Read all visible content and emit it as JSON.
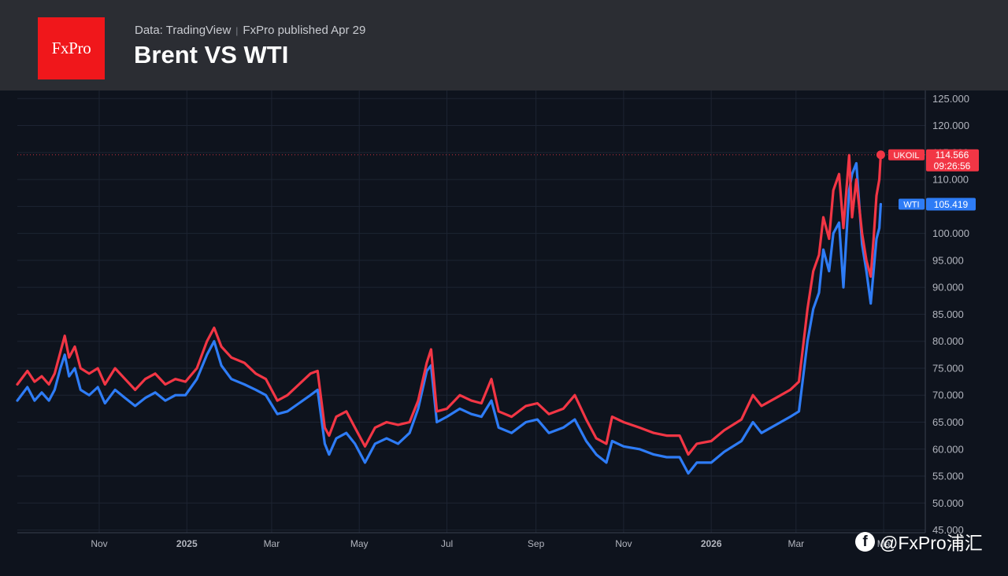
{
  "header": {
    "logo_text": "FxPro",
    "source": "Data: TradingView",
    "published": "FxPro published Apr 29",
    "title": "Brent VS WTI"
  },
  "watermark": {
    "icon": "facebook-icon",
    "text": "@FxPro浦汇"
  },
  "colors": {
    "brent": "#f23645",
    "wti": "#2e7cf6",
    "background": "#0e131d",
    "grid": "#1d2432",
    "axis_text": "#b2b5be"
  },
  "chart_data": {
    "type": "line",
    "title": "Brent VS WTI",
    "x_ticks": [
      {
        "label": "Nov",
        "date": "2024-11-01",
        "bold": false
      },
      {
        "label": "2025",
        "date": "2025-01-01",
        "bold": true
      },
      {
        "label": "Mar",
        "date": "2025-03-01",
        "bold": false
      },
      {
        "label": "May",
        "date": "2025-05-01",
        "bold": false
      },
      {
        "label": "Jul",
        "date": "2025-07-01",
        "bold": false
      },
      {
        "label": "Sep",
        "date": "2025-09-01",
        "bold": false
      },
      {
        "label": "Nov",
        "date": "2025-11-01",
        "bold": false
      },
      {
        "label": "2026",
        "date": "2026-01-01",
        "bold": true
      },
      {
        "label": "Mar",
        "date": "2026-03-01",
        "bold": false
      },
      {
        "label": "Ma",
        "date": "2026-05-01",
        "bold": false
      }
    ],
    "x_range": [
      "2024-09-05",
      "2026-05-30"
    ],
    "y_ticks": [
      "125.000",
      "120.000",
      "115.000",
      "110.000",
      "105.000",
      "100.000",
      "95.000",
      "90.000",
      "85.000",
      "80.000",
      "75.000",
      "70.000",
      "65.000",
      "60.000",
      "55.000",
      "50.000",
      "45.000"
    ],
    "ylim": [
      44.5,
      126.5
    ],
    "grid": true,
    "series": [
      {
        "name": "UKOIL",
        "last_value": "114.566",
        "countdown": "09:26:56",
        "points": [
          [
            "2024-09-05",
            72
          ],
          [
            "2024-09-12",
            74.5
          ],
          [
            "2024-09-17",
            72.5
          ],
          [
            "2024-09-22",
            73.5
          ],
          [
            "2024-09-27",
            72
          ],
          [
            "2024-10-01",
            74
          ],
          [
            "2024-10-05",
            78
          ],
          [
            "2024-10-08",
            81
          ],
          [
            "2024-10-11",
            77
          ],
          [
            "2024-10-15",
            79
          ],
          [
            "2024-10-19",
            75
          ],
          [
            "2024-10-25",
            74
          ],
          [
            "2024-10-31",
            75
          ],
          [
            "2024-11-05",
            72
          ],
          [
            "2024-11-12",
            75
          ],
          [
            "2024-11-19",
            73
          ],
          [
            "2024-11-26",
            71
          ],
          [
            "2024-12-03",
            73
          ],
          [
            "2024-12-10",
            74
          ],
          [
            "2024-12-17",
            72
          ],
          [
            "2024-12-24",
            73
          ],
          [
            "2024-12-31",
            72.5
          ],
          [
            "2025-01-08",
            75
          ],
          [
            "2025-01-15",
            80
          ],
          [
            "2025-01-20",
            82.5
          ],
          [
            "2025-01-25",
            79
          ],
          [
            "2025-02-01",
            77
          ],
          [
            "2025-02-10",
            76
          ],
          [
            "2025-02-18",
            74
          ],
          [
            "2025-02-25",
            73
          ],
          [
            "2025-03-05",
            69
          ],
          [
            "2025-03-12",
            70
          ],
          [
            "2025-03-20",
            72
          ],
          [
            "2025-03-28",
            74
          ],
          [
            "2025-04-02",
            74.5
          ],
          [
            "2025-04-07",
            64
          ],
          [
            "2025-04-10",
            62.5
          ],
          [
            "2025-04-15",
            66
          ],
          [
            "2025-04-22",
            67
          ],
          [
            "2025-04-28",
            64
          ],
          [
            "2025-05-05",
            60.5
          ],
          [
            "2025-05-12",
            64
          ],
          [
            "2025-05-20",
            65
          ],
          [
            "2025-05-28",
            64.5
          ],
          [
            "2025-06-05",
            65
          ],
          [
            "2025-06-11",
            69
          ],
          [
            "2025-06-17",
            76
          ],
          [
            "2025-06-20",
            78.5
          ],
          [
            "2025-06-24",
            67
          ],
          [
            "2025-07-01",
            67.5
          ],
          [
            "2025-07-10",
            70
          ],
          [
            "2025-07-18",
            69
          ],
          [
            "2025-07-25",
            68.5
          ],
          [
            "2025-08-01",
            73
          ],
          [
            "2025-08-06",
            67
          ],
          [
            "2025-08-15",
            66
          ],
          [
            "2025-08-25",
            68
          ],
          [
            "2025-09-02",
            68.5
          ],
          [
            "2025-09-10",
            66.5
          ],
          [
            "2025-09-20",
            67.5
          ],
          [
            "2025-09-28",
            70
          ],
          [
            "2025-10-06",
            65.5
          ],
          [
            "2025-10-13",
            62
          ],
          [
            "2025-10-20",
            61
          ],
          [
            "2025-10-24",
            66
          ],
          [
            "2025-11-01",
            65
          ],
          [
            "2025-11-12",
            64
          ],
          [
            "2025-11-22",
            63
          ],
          [
            "2025-12-01",
            62.5
          ],
          [
            "2025-12-10",
            62.5
          ],
          [
            "2025-12-16",
            59
          ],
          [
            "2025-12-22",
            61
          ],
          [
            "2026-01-01",
            61.5
          ],
          [
            "2026-01-10",
            63.5
          ],
          [
            "2026-01-22",
            65.5
          ],
          [
            "2026-01-30",
            70
          ],
          [
            "2026-02-05",
            68
          ],
          [
            "2026-02-15",
            69.5
          ],
          [
            "2026-02-25",
            71
          ],
          [
            "2026-03-03",
            72.5
          ],
          [
            "2026-03-09",
            86
          ],
          [
            "2026-03-13",
            93
          ],
          [
            "2026-03-17",
            96
          ],
          [
            "2026-03-20",
            103
          ],
          [
            "2026-03-24",
            99
          ],
          [
            "2026-03-27",
            108
          ],
          [
            "2026-03-31",
            111
          ],
          [
            "2026-04-03",
            101
          ],
          [
            "2026-04-07",
            114.5
          ],
          [
            "2026-04-09",
            103
          ],
          [
            "2026-04-12",
            110
          ],
          [
            "2026-04-16",
            100
          ],
          [
            "2026-04-19",
            95
          ],
          [
            "2026-04-22",
            92
          ],
          [
            "2026-04-24",
            99
          ],
          [
            "2026-04-26",
            107
          ],
          [
            "2026-04-28",
            110
          ],
          [
            "2026-04-29",
            114.566
          ]
        ]
      },
      {
        "name": "WTI",
        "last_value": "105.419",
        "points": [
          [
            "2024-09-05",
            69
          ],
          [
            "2024-09-12",
            71.5
          ],
          [
            "2024-09-17",
            69
          ],
          [
            "2024-09-22",
            70.5
          ],
          [
            "2024-09-27",
            69
          ],
          [
            "2024-10-01",
            71
          ],
          [
            "2024-10-05",
            75
          ],
          [
            "2024-10-08",
            77.5
          ],
          [
            "2024-10-11",
            73.5
          ],
          [
            "2024-10-15",
            75
          ],
          [
            "2024-10-19",
            71
          ],
          [
            "2024-10-25",
            70
          ],
          [
            "2024-10-31",
            71.5
          ],
          [
            "2024-11-05",
            68.5
          ],
          [
            "2024-11-12",
            71
          ],
          [
            "2024-11-19",
            69.5
          ],
          [
            "2024-11-26",
            68
          ],
          [
            "2024-12-03",
            69.5
          ],
          [
            "2024-12-10",
            70.5
          ],
          [
            "2024-12-17",
            69
          ],
          [
            "2024-12-24",
            70
          ],
          [
            "2024-12-31",
            70
          ],
          [
            "2025-01-08",
            73
          ],
          [
            "2025-01-15",
            77.5
          ],
          [
            "2025-01-20",
            80
          ],
          [
            "2025-01-25",
            75.5
          ],
          [
            "2025-02-01",
            73
          ],
          [
            "2025-02-10",
            72
          ],
          [
            "2025-02-18",
            71
          ],
          [
            "2025-02-25",
            70
          ],
          [
            "2025-03-05",
            66.5
          ],
          [
            "2025-03-12",
            67
          ],
          [
            "2025-03-20",
            68.5
          ],
          [
            "2025-03-28",
            70
          ],
          [
            "2025-04-02",
            71
          ],
          [
            "2025-04-07",
            61
          ],
          [
            "2025-04-10",
            59
          ],
          [
            "2025-04-15",
            62
          ],
          [
            "2025-04-22",
            63
          ],
          [
            "2025-04-28",
            61
          ],
          [
            "2025-05-05",
            57.5
          ],
          [
            "2025-05-12",
            61
          ],
          [
            "2025-05-20",
            62
          ],
          [
            "2025-05-28",
            61
          ],
          [
            "2025-06-05",
            63
          ],
          [
            "2025-06-11",
            67.5
          ],
          [
            "2025-06-17",
            74.5
          ],
          [
            "2025-06-20",
            75.5
          ],
          [
            "2025-06-24",
            65
          ],
          [
            "2025-07-01",
            66
          ],
          [
            "2025-07-10",
            67.5
          ],
          [
            "2025-07-18",
            66.5
          ],
          [
            "2025-07-25",
            66
          ],
          [
            "2025-08-01",
            69
          ],
          [
            "2025-08-06",
            64
          ],
          [
            "2025-08-15",
            63
          ],
          [
            "2025-08-25",
            65
          ],
          [
            "2025-09-02",
            65.5
          ],
          [
            "2025-09-10",
            63
          ],
          [
            "2025-09-20",
            64
          ],
          [
            "2025-09-28",
            65.5
          ],
          [
            "2025-10-06",
            61.5
          ],
          [
            "2025-10-13",
            59
          ],
          [
            "2025-10-20",
            57.5
          ],
          [
            "2025-10-24",
            61.5
          ],
          [
            "2025-11-01",
            60.5
          ],
          [
            "2025-11-12",
            60
          ],
          [
            "2025-11-22",
            59
          ],
          [
            "2025-12-01",
            58.5
          ],
          [
            "2025-12-10",
            58.5
          ],
          [
            "2025-12-16",
            55.5
          ],
          [
            "2025-12-22",
            57.5
          ],
          [
            "2026-01-01",
            57.5
          ],
          [
            "2026-01-10",
            59.5
          ],
          [
            "2026-01-22",
            61.5
          ],
          [
            "2026-01-30",
            65
          ],
          [
            "2026-02-05",
            63
          ],
          [
            "2026-02-15",
            64.5
          ],
          [
            "2026-02-25",
            66
          ],
          [
            "2026-03-03",
            67
          ],
          [
            "2026-03-09",
            80
          ],
          [
            "2026-03-13",
            86
          ],
          [
            "2026-03-17",
            89
          ],
          [
            "2026-03-20",
            97
          ],
          [
            "2026-03-24",
            93
          ],
          [
            "2026-03-27",
            100
          ],
          [
            "2026-03-31",
            102
          ],
          [
            "2026-04-03",
            90
          ],
          [
            "2026-04-07",
            108
          ],
          [
            "2026-04-09",
            111
          ],
          [
            "2026-04-12",
            113
          ],
          [
            "2026-04-16",
            98
          ],
          [
            "2026-04-19",
            93
          ],
          [
            "2026-04-22",
            87
          ],
          [
            "2026-04-24",
            93
          ],
          [
            "2026-04-26",
            99
          ],
          [
            "2026-04-28",
            101
          ],
          [
            "2026-04-29",
            105.419
          ]
        ]
      }
    ]
  }
}
